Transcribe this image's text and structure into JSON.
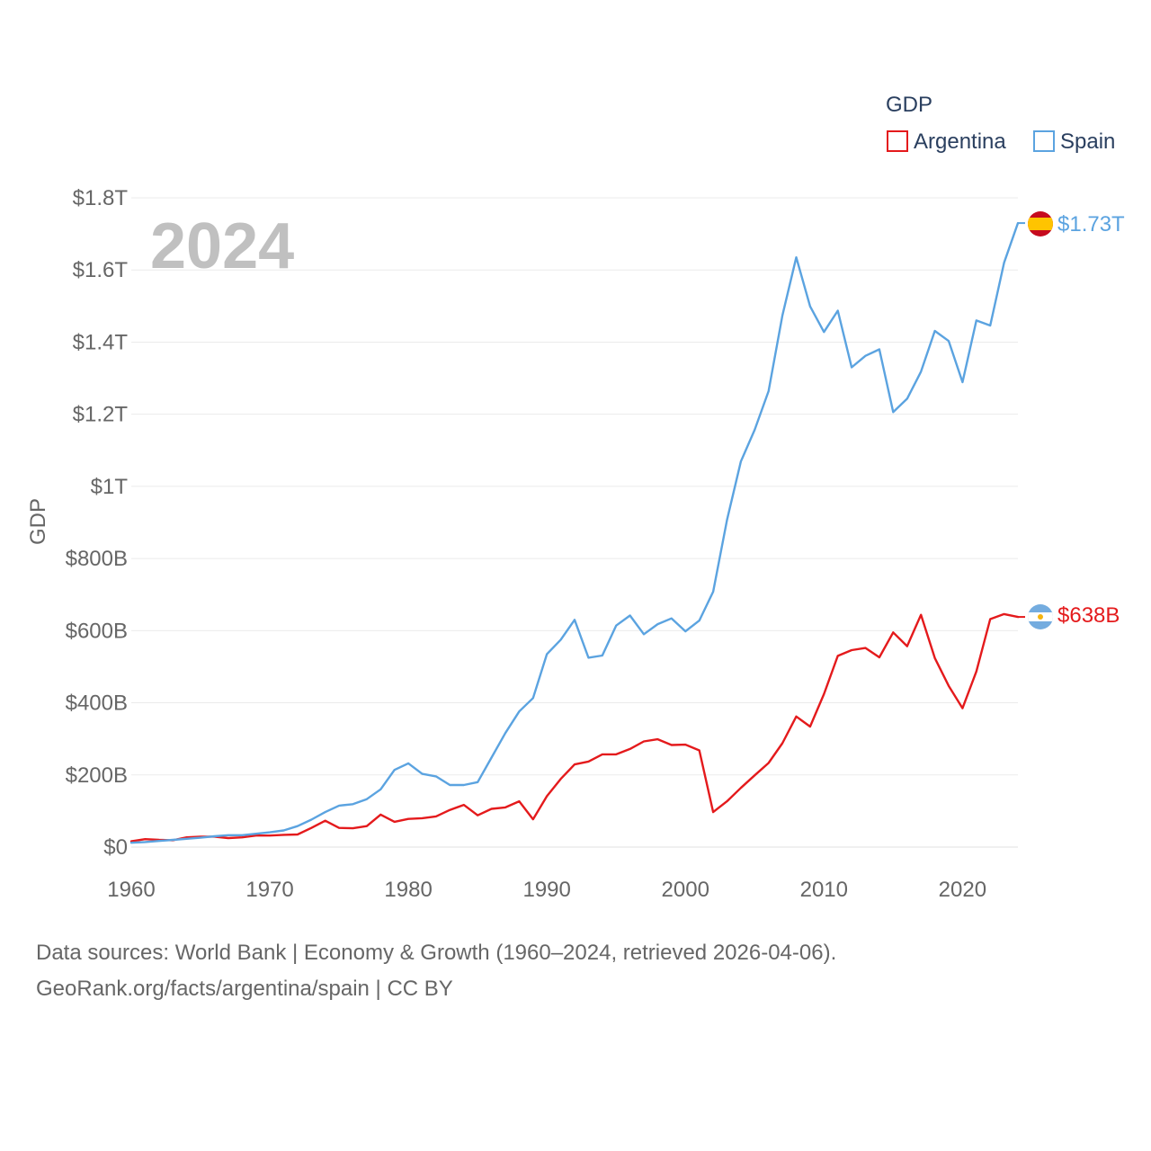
{
  "chart_data": {
    "type": "line",
    "legend_title": "GDP",
    "ylabel": "GDP",
    "xlabel": "",
    "year_watermark": "2024",
    "x_ticks": [
      1960,
      1970,
      1980,
      1990,
      2000,
      2010,
      2020
    ],
    "y_ticks": [
      {
        "value": 0,
        "label": "$0"
      },
      {
        "value": 200,
        "label": "$200B"
      },
      {
        "value": 400,
        "label": "$400B"
      },
      {
        "value": 600,
        "label": "$600B"
      },
      {
        "value": 800,
        "label": "$800B"
      },
      {
        "value": 1000,
        "label": "$1T"
      },
      {
        "value": 1200,
        "label": "$1.2T"
      },
      {
        "value": 1400,
        "label": "$1.4T"
      },
      {
        "value": 1600,
        "label": "$1.6T"
      },
      {
        "value": 1800,
        "label": "$1.8T"
      }
    ],
    "xlim": [
      1960,
      2024
    ],
    "ylim": [
      0,
      1800
    ],
    "units": "billions USD",
    "x": [
      1960,
      1961,
      1962,
      1963,
      1964,
      1965,
      1966,
      1967,
      1968,
      1969,
      1970,
      1971,
      1972,
      1973,
      1974,
      1975,
      1976,
      1977,
      1978,
      1979,
      1980,
      1981,
      1982,
      1983,
      1984,
      1985,
      1986,
      1987,
      1988,
      1989,
      1990,
      1991,
      1992,
      1993,
      1994,
      1995,
      1996,
      1997,
      1998,
      1999,
      2000,
      2001,
      2002,
      2003,
      2004,
      2005,
      2006,
      2007,
      2008,
      2009,
      2010,
      2011,
      2012,
      2013,
      2014,
      2015,
      2016,
      2017,
      2018,
      2019,
      2020,
      2021,
      2022,
      2023,
      2024
    ],
    "series": [
      {
        "name": "Argentina",
        "color": "#e41a1c",
        "end_label": "$638B",
        "flag": "argentina-flag",
        "values": [
          16,
          22,
          20,
          19,
          27,
          29,
          29,
          25,
          27,
          32,
          32,
          34,
          35,
          53,
          73,
          53,
          52,
          58,
          90,
          70,
          78,
          80,
          85,
          103,
          117,
          88,
          106,
          110,
          127,
          77,
          141,
          189,
          229,
          237,
          257,
          257,
          272,
          293,
          299,
          283,
          284,
          268,
          97,
          127,
          164,
          199,
          233,
          288,
          362,
          334,
          424,
          530,
          546,
          552,
          526,
          595,
          557,
          644,
          524,
          447,
          385,
          487,
          632,
          646,
          638
        ]
      },
      {
        "name": "Spain",
        "color": "#5ba3e0",
        "end_label": "$1.73T",
        "flag": "spain-flag",
        "values": [
          12,
          14,
          17,
          20,
          23,
          26,
          30,
          33,
          33,
          37,
          41,
          46,
          58,
          76,
          97,
          115,
          119,
          133,
          160,
          214,
          232,
          203,
          196,
          172,
          172,
          180,
          248,
          316,
          376,
          413,
          535,
          575,
          630,
          525,
          531,
          614,
          642,
          590,
          618,
          634,
          598,
          628,
          708,
          907,
          1069,
          1157,
          1264,
          1474,
          1635,
          1499,
          1428,
          1487,
          1330,
          1362,
          1380,
          1206,
          1243,
          1318,
          1431,
          1403,
          1289,
          1460,
          1446,
          1620,
          1730
        ]
      }
    ]
  },
  "footer": {
    "line1": "Data sources: World Bank | Economy & Growth (1960–2024, retrieved 2026-04-06).",
    "line2": "GeoRank.org/facts/argentina/spain | CC BY"
  }
}
